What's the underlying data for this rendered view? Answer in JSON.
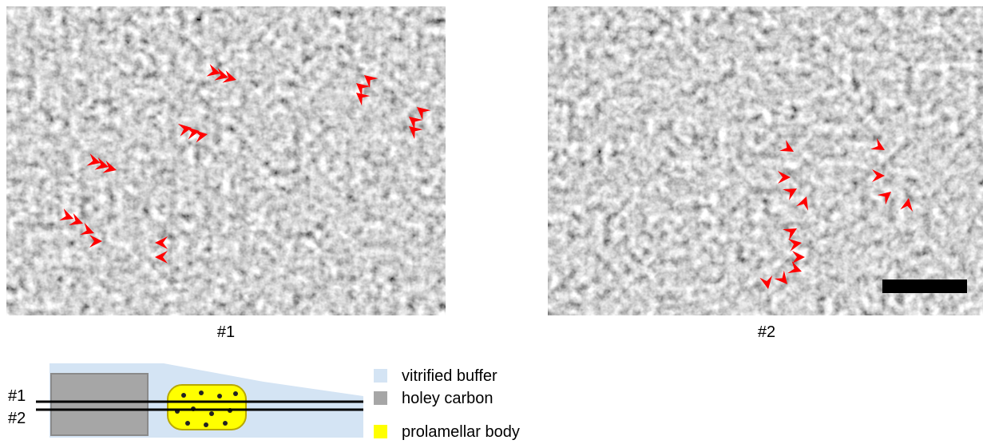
{
  "panels": [
    {
      "label": "#1"
    },
    {
      "label": "#2"
    }
  ],
  "schematic": {
    "lines": [
      "#1",
      "#2"
    ]
  },
  "legend": [
    {
      "label": "vitrified buffer",
      "color": "#d4e4f4"
    },
    {
      "label": "holey carbon",
      "color": "#a6a6a6"
    },
    {
      "label": "prolamellar body",
      "color": "#ffff00"
    }
  ]
}
